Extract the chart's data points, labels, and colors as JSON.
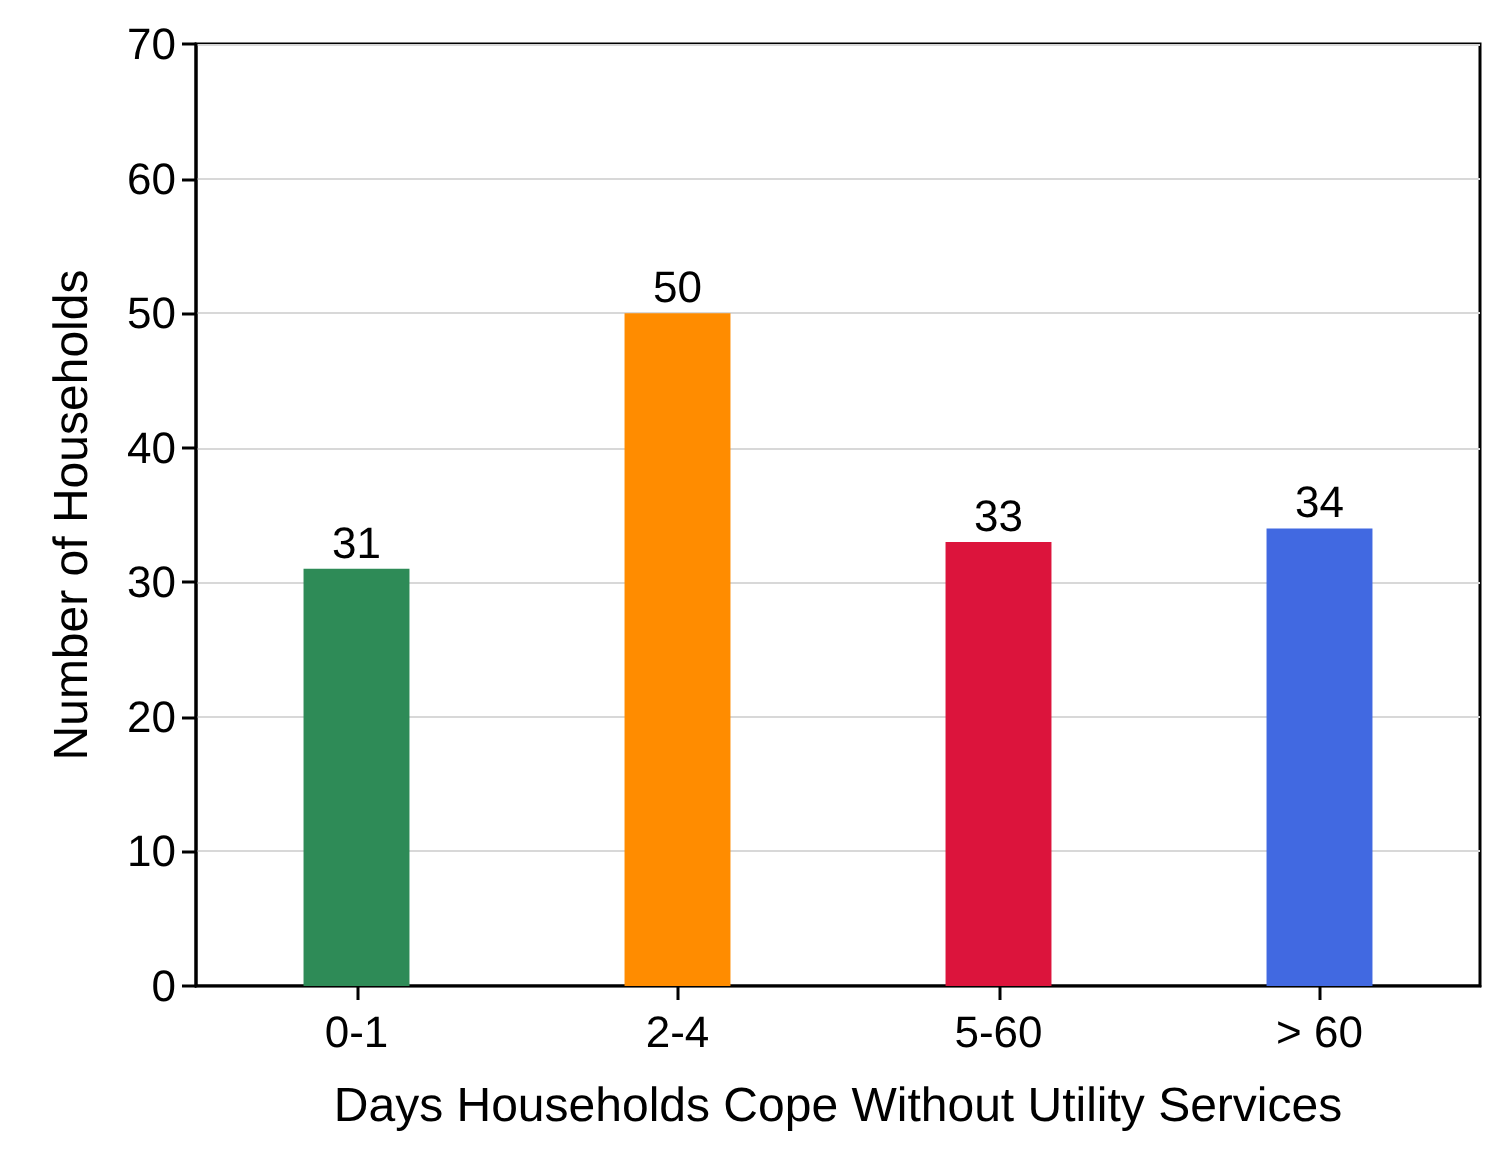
{
  "chart_data": {
    "type": "bar",
    "xlabel": "Days Households Cope Without Utility Services",
    "ylabel": "Number of Households",
    "categories": [
      "0-1",
      "2-4",
      "5-60",
      "> 60"
    ],
    "values": [
      31,
      50,
      33,
      34
    ],
    "colors": [
      "#2e8b57",
      "#ff8c00",
      "#dc143c",
      "#4169e1"
    ],
    "ylim": [
      0,
      70
    ],
    "yticks": [
      0,
      10,
      20,
      30,
      40,
      50,
      60,
      70
    ],
    "grid": "y",
    "data_labels": true
  }
}
